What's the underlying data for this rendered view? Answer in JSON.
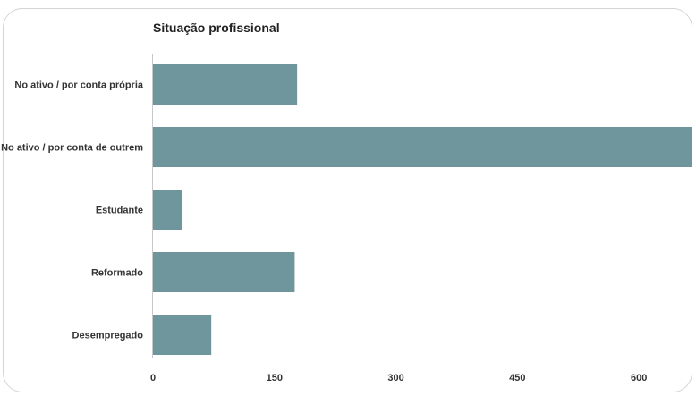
{
  "chart_data": {
    "type": "bar",
    "orientation": "horizontal",
    "title": "Situação profissional",
    "categories": [
      "No ativo / por conta própria",
      "No ativo / por conta de outrem",
      "Estudante",
      "Reformado",
      "Desempregado"
    ],
    "values": [
      178,
      665,
      36,
      175,
      72
    ],
    "xlim": [
      0,
      665
    ],
    "xticks": [
      0,
      150,
      300,
      450,
      600
    ],
    "xtick_labels": [
      "0",
      "150",
      "300",
      "450",
      "600"
    ],
    "grid": false,
    "bar_color": "#6e969c"
  }
}
